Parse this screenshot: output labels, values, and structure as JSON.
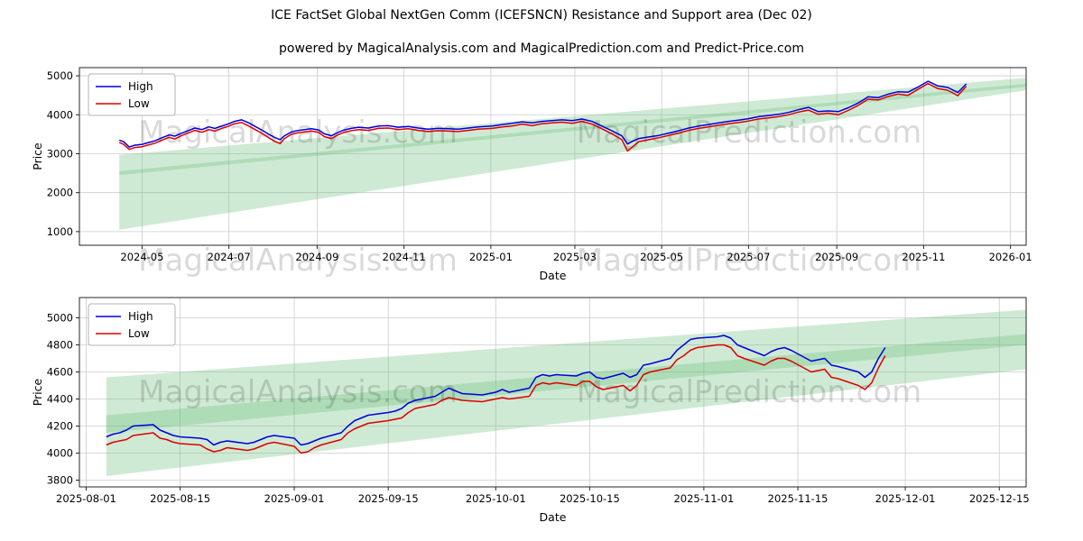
{
  "title": "ICE FactSet Global NextGen Comm (ICEFSNCN) Resistance and Support area (Dec 02)",
  "subtitle": "powered by MagicalAnalysis.com and MagicalPrediction.com and Predict-Price.com",
  "watermark": {
    "left": "MagicalAnalysis.com",
    "right": "MagicalPrediction.com",
    "color": "rgba(0,0,0,0.15)"
  },
  "colors": {
    "high": "#0000dd",
    "low": "#dd0000",
    "band": "rgba(105,190,120,0.32)",
    "grid": "#cccccc",
    "spine": "#262626"
  },
  "chart_data": [
    {
      "type": "line",
      "xlabel": "Date",
      "ylabel": "Price",
      "legend_position": "upper left",
      "grid": true,
      "xlim": [
        "2024-03-18",
        "2026-01-12"
      ],
      "ylim": [
        650,
        5210
      ],
      "yticks": [
        1000,
        2000,
        3000,
        4000,
        5000
      ],
      "xticks": [
        {
          "d": "2024-05-01",
          "label": "2024-05"
        },
        {
          "d": "2024-07-01",
          "label": "2024-07"
        },
        {
          "d": "2024-09-01",
          "label": "2024-09"
        },
        {
          "d": "2024-11-01",
          "label": "2024-11"
        },
        {
          "d": "2025-01-01",
          "label": "2025-01"
        },
        {
          "d": "2025-03-01",
          "label": "2025-03"
        },
        {
          "d": "2025-05-01",
          "label": "2025-05"
        },
        {
          "d": "2025-07-01",
          "label": "2025-07"
        },
        {
          "d": "2025-09-01",
          "label": "2025-09"
        },
        {
          "d": "2025-11-01",
          "label": "2025-11"
        },
        {
          "d": "2026-01-01",
          "label": "2026-01"
        }
      ],
      "series": [
        {
          "name": "High",
          "color": "#0000dd",
          "col": 1
        },
        {
          "name": "Low",
          "color": "#dd0000",
          "col": 2
        }
      ],
      "bands": [
        {
          "x": [
            "2024-04-15",
            "2026-01-12"
          ],
          "top": [
            2970,
            4950
          ],
          "bottom": [
            2450,
            4720
          ]
        },
        {
          "x": [
            "2024-04-15",
            "2026-01-12"
          ],
          "top": [
            2550,
            4800
          ],
          "bottom": [
            1050,
            4630
          ]
        }
      ],
      "columns": [
        "date",
        "high",
        "low"
      ],
      "points": [
        [
          "2024-04-15",
          3350,
          3290
        ],
        [
          "2024-04-18",
          3310,
          3240
        ],
        [
          "2024-04-22",
          3170,
          3110
        ],
        [
          "2024-04-26",
          3220,
          3160
        ],
        [
          "2024-05-01",
          3240,
          3180
        ],
        [
          "2024-05-06",
          3290,
          3230
        ],
        [
          "2024-05-10",
          3330,
          3270
        ],
        [
          "2024-05-15",
          3410,
          3350
        ],
        [
          "2024-05-20",
          3480,
          3420
        ],
        [
          "2024-05-24",
          3450,
          3380
        ],
        [
          "2024-05-29",
          3530,
          3470
        ],
        [
          "2024-06-03",
          3600,
          3540
        ],
        [
          "2024-06-07",
          3660,
          3600
        ],
        [
          "2024-06-12",
          3620,
          3550
        ],
        [
          "2024-06-17",
          3690,
          3620
        ],
        [
          "2024-06-21",
          3650,
          3580
        ],
        [
          "2024-06-26",
          3710,
          3650
        ],
        [
          "2024-07-01",
          3770,
          3710
        ],
        [
          "2024-07-05",
          3830,
          3770
        ],
        [
          "2024-07-10",
          3870,
          3800
        ],
        [
          "2024-07-15",
          3790,
          3710
        ],
        [
          "2024-07-19",
          3710,
          3630
        ],
        [
          "2024-07-24",
          3610,
          3530
        ],
        [
          "2024-07-29",
          3500,
          3410
        ],
        [
          "2024-08-02",
          3420,
          3320
        ],
        [
          "2024-08-06",
          3360,
          3260
        ],
        [
          "2024-08-09",
          3460,
          3390
        ],
        [
          "2024-08-14",
          3560,
          3500
        ],
        [
          "2024-08-19",
          3600,
          3540
        ],
        [
          "2024-08-23",
          3620,
          3560
        ],
        [
          "2024-08-28",
          3640,
          3580
        ],
        [
          "2024-09-02",
          3610,
          3550
        ],
        [
          "2024-09-06",
          3510,
          3440
        ],
        [
          "2024-09-11",
          3460,
          3390
        ],
        [
          "2024-09-16",
          3550,
          3490
        ],
        [
          "2024-09-20",
          3610,
          3550
        ],
        [
          "2024-09-25",
          3650,
          3590
        ],
        [
          "2024-09-30",
          3680,
          3620
        ],
        [
          "2024-10-07",
          3660,
          3600
        ],
        [
          "2024-10-14",
          3710,
          3650
        ],
        [
          "2024-10-21",
          3720,
          3660
        ],
        [
          "2024-10-28",
          3680,
          3620
        ],
        [
          "2024-11-04",
          3700,
          3640
        ],
        [
          "2024-11-11",
          3660,
          3600
        ],
        [
          "2024-11-18",
          3630,
          3570
        ],
        [
          "2024-11-25",
          3650,
          3590
        ],
        [
          "2024-12-02",
          3640,
          3580
        ],
        [
          "2024-12-09",
          3630,
          3570
        ],
        [
          "2024-12-16",
          3660,
          3600
        ],
        [
          "2024-12-23",
          3690,
          3630
        ],
        [
          "2025-01-02",
          3710,
          3650
        ],
        [
          "2025-01-09",
          3750,
          3690
        ],
        [
          "2025-01-16",
          3780,
          3710
        ],
        [
          "2025-01-23",
          3820,
          3760
        ],
        [
          "2025-01-30",
          3790,
          3720
        ],
        [
          "2025-02-06",
          3830,
          3770
        ],
        [
          "2025-02-13",
          3850,
          3790
        ],
        [
          "2025-02-20",
          3870,
          3810
        ],
        [
          "2025-02-27",
          3850,
          3780
        ],
        [
          "2025-03-06",
          3890,
          3830
        ],
        [
          "2025-03-13",
          3830,
          3760
        ],
        [
          "2025-03-20",
          3710,
          3640
        ],
        [
          "2025-03-27",
          3590,
          3510
        ],
        [
          "2025-04-03",
          3460,
          3360
        ],
        [
          "2025-04-07",
          3250,
          3070
        ],
        [
          "2025-04-10",
          3310,
          3160
        ],
        [
          "2025-04-15",
          3390,
          3310
        ],
        [
          "2025-04-22",
          3430,
          3360
        ],
        [
          "2025-04-29",
          3470,
          3410
        ],
        [
          "2025-05-06",
          3530,
          3470
        ],
        [
          "2025-05-13",
          3590,
          3530
        ],
        [
          "2025-05-20",
          3660,
          3600
        ],
        [
          "2025-05-27",
          3710,
          3650
        ],
        [
          "2025-06-03",
          3750,
          3690
        ],
        [
          "2025-06-10",
          3790,
          3730
        ],
        [
          "2025-06-17",
          3830,
          3770
        ],
        [
          "2025-06-24",
          3860,
          3800
        ],
        [
          "2025-07-01",
          3900,
          3840
        ],
        [
          "2025-07-08",
          3950,
          3890
        ],
        [
          "2025-07-15",
          3980,
          3920
        ],
        [
          "2025-07-22",
          4010,
          3950
        ],
        [
          "2025-07-29",
          4060,
          4000
        ],
        [
          "2025-08-05",
          4130,
          4070
        ],
        [
          "2025-08-12",
          4190,
          4120
        ],
        [
          "2025-08-19",
          4080,
          4010
        ],
        [
          "2025-08-26",
          4100,
          4040
        ],
        [
          "2025-09-02",
          4080,
          4000
        ],
        [
          "2025-09-09",
          4180,
          4110
        ],
        [
          "2025-09-16",
          4300,
          4240
        ],
        [
          "2025-09-23",
          4460,
          4400
        ],
        [
          "2025-09-30",
          4440,
          4380
        ],
        [
          "2025-10-07",
          4530,
          4470
        ],
        [
          "2025-10-14",
          4590,
          4530
        ],
        [
          "2025-10-21",
          4580,
          4500
        ],
        [
          "2025-10-28",
          4710,
          4650
        ],
        [
          "2025-11-04",
          4860,
          4800
        ],
        [
          "2025-11-11",
          4740,
          4670
        ],
        [
          "2025-11-18",
          4700,
          4630
        ],
        [
          "2025-11-25",
          4570,
          4490
        ],
        [
          "2025-12-01",
          4790,
          4730
        ]
      ]
    },
    {
      "type": "line",
      "xlabel": "Date",
      "ylabel": "Price",
      "legend_position": "upper left",
      "grid": true,
      "xlim": [
        "2025-07-31",
        "2025-12-19"
      ],
      "ylim": [
        3750,
        5150
      ],
      "yticks": [
        3800,
        4000,
        4200,
        4400,
        4600,
        4800,
        5000
      ],
      "xticks": [
        {
          "d": "2025-08-01",
          "label": "2025-08-01"
        },
        {
          "d": "2025-08-15",
          "label": "2025-08-15"
        },
        {
          "d": "2025-09-01",
          "label": "2025-09-01"
        },
        {
          "d": "2025-09-15",
          "label": "2025-09-15"
        },
        {
          "d": "2025-10-01",
          "label": "2025-10-01"
        },
        {
          "d": "2025-10-15",
          "label": "2025-10-15"
        },
        {
          "d": "2025-11-01",
          "label": "2025-11-01"
        },
        {
          "d": "2025-11-15",
          "label": "2025-11-15"
        },
        {
          "d": "2025-12-01",
          "label": "2025-12-01"
        },
        {
          "d": "2025-12-15",
          "label": "2025-12-15"
        }
      ],
      "series": [
        {
          "name": "High",
          "color": "#0000dd",
          "col": 1
        },
        {
          "name": "Low",
          "color": "#dd0000",
          "col": 2
        }
      ],
      "bands": [
        {
          "x": [
            "2025-08-04",
            "2025-12-19"
          ],
          "top": [
            4560,
            5060
          ],
          "bottom": [
            4150,
            4800
          ]
        },
        {
          "x": [
            "2025-08-04",
            "2025-12-19"
          ],
          "top": [
            4280,
            4880
          ],
          "bottom": [
            3830,
            4620
          ]
        }
      ],
      "columns": [
        "date",
        "high",
        "low"
      ],
      "points": [
        [
          "2025-08-04",
          4120,
          4060
        ],
        [
          "2025-08-05",
          4140,
          4080
        ],
        [
          "2025-08-06",
          4150,
          4090
        ],
        [
          "2025-08-07",
          4170,
          4100
        ],
        [
          "2025-08-08",
          4200,
          4130
        ],
        [
          "2025-08-11",
          4210,
          4150
        ],
        [
          "2025-08-12",
          4170,
          4110
        ],
        [
          "2025-08-13",
          4150,
          4100
        ],
        [
          "2025-08-14",
          4130,
          4080
        ],
        [
          "2025-08-15",
          4120,
          4070
        ],
        [
          "2025-08-18",
          4110,
          4060
        ],
        [
          "2025-08-19",
          4100,
          4030
        ],
        [
          "2025-08-20",
          4060,
          4010
        ],
        [
          "2025-08-21",
          4080,
          4020
        ],
        [
          "2025-08-22",
          4090,
          4040
        ],
        [
          "2025-08-25",
          4070,
          4020
        ],
        [
          "2025-08-26",
          4080,
          4030
        ],
        [
          "2025-08-27",
          4100,
          4050
        ],
        [
          "2025-08-28",
          4120,
          4070
        ],
        [
          "2025-08-29",
          4130,
          4080
        ],
        [
          "2025-09-01",
          4110,
          4050
        ],
        [
          "2025-09-02",
          4060,
          4000
        ],
        [
          "2025-09-03",
          4070,
          4010
        ],
        [
          "2025-09-04",
          4090,
          4040
        ],
        [
          "2025-09-05",
          4110,
          4060
        ],
        [
          "2025-09-08",
          4150,
          4100
        ],
        [
          "2025-09-09",
          4200,
          4150
        ],
        [
          "2025-09-10",
          4240,
          4180
        ],
        [
          "2025-09-11",
          4260,
          4200
        ],
        [
          "2025-09-12",
          4280,
          4220
        ],
        [
          "2025-09-15",
          4300,
          4240
        ],
        [
          "2025-09-16",
          4310,
          4250
        ],
        [
          "2025-09-17",
          4330,
          4260
        ],
        [
          "2025-09-18",
          4370,
          4300
        ],
        [
          "2025-09-19",
          4390,
          4330
        ],
        [
          "2025-09-22",
          4420,
          4360
        ],
        [
          "2025-09-23",
          4450,
          4390
        ],
        [
          "2025-09-24",
          4480,
          4410
        ],
        [
          "2025-09-25",
          4460,
          4400
        ],
        [
          "2025-09-26",
          4440,
          4390
        ],
        [
          "2025-09-29",
          4430,
          4380
        ],
        [
          "2025-09-30",
          4440,
          4390
        ],
        [
          "2025-10-01",
          4450,
          4400
        ],
        [
          "2025-10-02",
          4470,
          4410
        ],
        [
          "2025-10-03",
          4450,
          4400
        ],
        [
          "2025-10-06",
          4480,
          4420
        ],
        [
          "2025-10-07",
          4560,
          4500
        ],
        [
          "2025-10-08",
          4580,
          4520
        ],
        [
          "2025-10-09",
          4570,
          4510
        ],
        [
          "2025-10-10",
          4580,
          4520
        ],
        [
          "2025-10-13",
          4570,
          4500
        ],
        [
          "2025-10-14",
          4590,
          4530
        ],
        [
          "2025-10-15",
          4600,
          4530
        ],
        [
          "2025-10-16",
          4560,
          4490
        ],
        [
          "2025-10-17",
          4550,
          4470
        ],
        [
          "2025-10-20",
          4590,
          4500
        ],
        [
          "2025-10-21",
          4560,
          4460
        ],
        [
          "2025-10-22",
          4580,
          4500
        ],
        [
          "2025-10-23",
          4650,
          4580
        ],
        [
          "2025-10-24",
          4660,
          4600
        ],
        [
          "2025-10-27",
          4700,
          4630
        ],
        [
          "2025-10-28",
          4760,
          4690
        ],
        [
          "2025-10-29",
          4800,
          4720
        ],
        [
          "2025-10-30",
          4840,
          4760
        ],
        [
          "2025-10-31",
          4850,
          4780
        ],
        [
          "2025-11-03",
          4860,
          4800
        ],
        [
          "2025-11-04",
          4870,
          4800
        ],
        [
          "2025-11-05",
          4850,
          4780
        ],
        [
          "2025-11-06",
          4800,
          4720
        ],
        [
          "2025-11-07",
          4780,
          4700
        ],
        [
          "2025-11-10",
          4720,
          4650
        ],
        [
          "2025-11-11",
          4750,
          4680
        ],
        [
          "2025-11-12",
          4770,
          4700
        ],
        [
          "2025-11-13",
          4780,
          4700
        ],
        [
          "2025-11-14",
          4760,
          4680
        ],
        [
          "2025-11-17",
          4680,
          4600
        ],
        [
          "2025-11-18",
          4690,
          4610
        ],
        [
          "2025-11-19",
          4700,
          4620
        ],
        [
          "2025-11-20",
          4650,
          4560
        ],
        [
          "2025-11-21",
          4640,
          4550
        ],
        [
          "2025-11-24",
          4600,
          4500
        ],
        [
          "2025-11-25",
          4560,
          4470
        ],
        [
          "2025-11-26",
          4600,
          4520
        ],
        [
          "2025-11-27",
          4700,
          4630
        ],
        [
          "2025-11-28",
          4780,
          4720
        ]
      ]
    }
  ]
}
